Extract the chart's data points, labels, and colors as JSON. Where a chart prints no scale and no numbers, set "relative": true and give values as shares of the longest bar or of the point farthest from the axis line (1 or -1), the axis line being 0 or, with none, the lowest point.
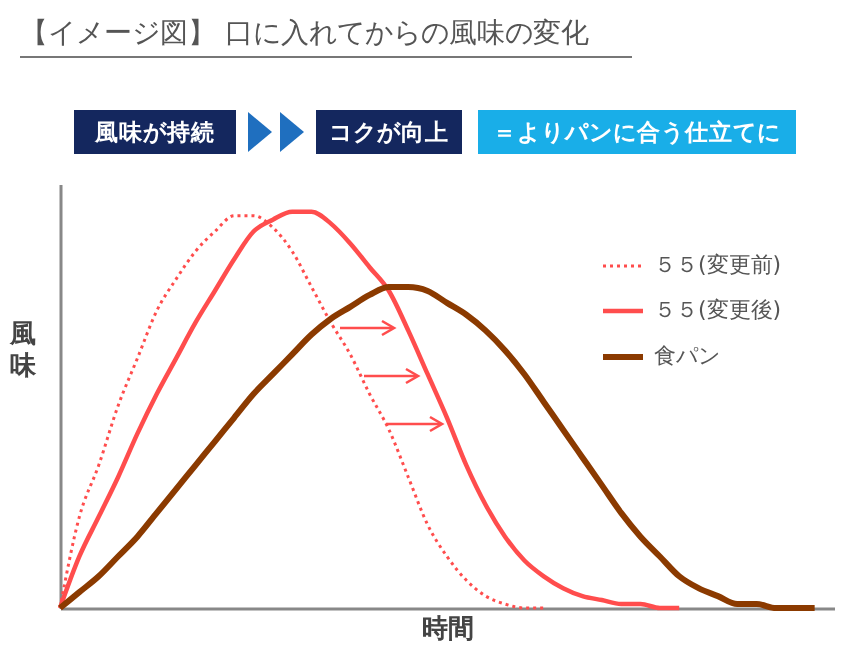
{
  "chart_data": {
    "type": "line",
    "title": "【イメージ図】 口に入れてからの風味の変化",
    "annotations": [
      "風味が持続",
      "コクが向上",
      "＝よりパンに合う仕立てに"
    ],
    "xlabel": "時間",
    "ylabel": "風味",
    "relative": true,
    "legend": "top right",
    "grid": false,
    "marker": "none",
    "categories": [
      null,
      null,
      null,
      null,
      null,
      null,
      null,
      null,
      null,
      null,
      null,
      null,
      null,
      null,
      null,
      null,
      null,
      null,
      null,
      null,
      null,
      null,
      null,
      null,
      null,
      null,
      null,
      null,
      null,
      null,
      null,
      null,
      null,
      null,
      null,
      null,
      null,
      null,
      null,
      null,
      null
    ],
    "series": [
      {
        "name": "５５(変更前)",
        "color": "#ff4d4d",
        "line_style": "dotted",
        "values": [
          0,
          0.23,
          0.36,
          0.51,
          0.63,
          0.75,
          0.83,
          0.9,
          0.95,
          0.99,
          0.99,
          0.96,
          0.9,
          0.81,
          0.72,
          0.64,
          0.54,
          0.45,
          0.33,
          0.21,
          0.13,
          0.07,
          0.03,
          0.01,
          0,
          0,
          null,
          null,
          null,
          null,
          null,
          null,
          null,
          null,
          null,
          null,
          null,
          null,
          null,
          null,
          null
        ]
      },
      {
        "name": "５５(変更後)",
        "color": "#ff4d4d",
        "line_style": "solid",
        "values": [
          0,
          0.13,
          0.23,
          0.33,
          0.44,
          0.54,
          0.63,
          0.72,
          0.8,
          0.88,
          0.95,
          0.98,
          1,
          1,
          0.97,
          0.92,
          0.86,
          0.8,
          0.7,
          0.59,
          0.48,
          0.36,
          0.26,
          0.18,
          0.12,
          0.08,
          0.05,
          0.03,
          0.02,
          0.01,
          0.01,
          0,
          0,
          null,
          null,
          null,
          null,
          null,
          null,
          null,
          null
        ]
      },
      {
        "name": "食パン",
        "color": "#8b3a00",
        "line_style": "solid",
        "values": [
          0,
          0.04,
          0.08,
          0.13,
          0.18,
          0.24,
          0.3,
          0.36,
          0.42,
          0.48,
          0.54,
          0.59,
          0.64,
          0.69,
          0.73,
          0.76,
          0.79,
          0.81,
          0.81,
          0.8,
          0.77,
          0.74,
          0.7,
          0.65,
          0.59,
          0.52,
          0.45,
          0.38,
          0.31,
          0.24,
          0.18,
          0.13,
          0.08,
          0.05,
          0.03,
          0.01,
          0.01,
          0,
          0,
          0,
          null
        ]
      }
    ]
  }
}
